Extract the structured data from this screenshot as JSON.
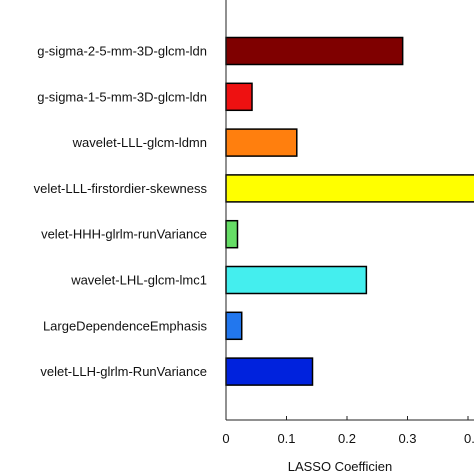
{
  "chart_data": {
    "type": "bar",
    "orientation": "horizontal",
    "title": "",
    "xlabel": "LASSO Coefficien",
    "ylabel": "",
    "xlim": [
      0,
      0.4
    ],
    "xticks": [
      0,
      0.1,
      0.2,
      0.3,
      0.4
    ],
    "xtick_labels": [
      "0",
      "0.1",
      "0.2",
      "0.3",
      "0."
    ],
    "grid": false,
    "categories": [
      "g-sigma-2-5-mm-3D-glcm-ldn",
      "g-sigma-1-5-mm-3D-glcm-ldn",
      "wavelet-LLL-glcm-ldmn",
      "velet-LLL-firstordier-skewness",
      "velet-HHH-glrlm-runVariance",
      "wavelet-LHL-glcm-lmc1",
      "LargeDependenceEmphasis",
      "velet-LLH-glrlm-RunVariance"
    ],
    "values": [
      0.292,
      0.043,
      0.117,
      0.415,
      0.019,
      0.232,
      0.026,
      0.143
    ],
    "colors": [
      "#7f0000",
      "#ee1111",
      "#ff7f0e",
      "#ffff00",
      "#66dd66",
      "#44eeee",
      "#2277ee",
      "#0022dd"
    ]
  }
}
